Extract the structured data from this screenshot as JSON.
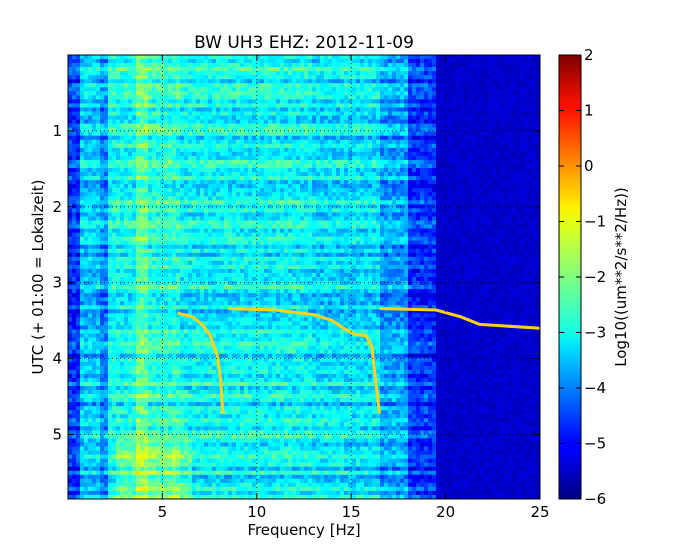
{
  "chart_data": {
    "type": "heatmap",
    "title": "BW UH3 EHZ: 2012-11-09",
    "xlabel": "Frequency [Hz]",
    "ylabel": "UTC (+ 01:00 = Lokalzeit)",
    "xlim": [
      0,
      25
    ],
    "ylim": [
      5.85,
      0
    ],
    "x_ticks": [
      5,
      10,
      15,
      20,
      25
    ],
    "y_ticks": [
      1,
      2,
      3,
      4,
      5
    ],
    "grid": true,
    "colorbar": {
      "label": "Log10((um**2/s**2/Hz))",
      "range": [
        -6,
        2
      ],
      "ticks": [
        -6,
        -5,
        -4,
        -3,
        -2,
        -1,
        0,
        1,
        2
      ],
      "colormap": "jet"
    },
    "background_levels": [
      {
        "f_max": 0.6,
        "level": -4.6
      },
      {
        "f_max": 1.6,
        "level": -3.4
      },
      {
        "f_max": 2.1,
        "level": -3.9
      },
      {
        "f_max": 3.5,
        "level": -2.9
      },
      {
        "f_max": 4.2,
        "level": -2.2
      },
      {
        "f_max": 6.0,
        "level": -2.7
      },
      {
        "f_max": 13.0,
        "level": -3.0
      },
      {
        "f_max": 16.5,
        "level": -3.2
      },
      {
        "f_max": 18.0,
        "level": -3.7
      },
      {
        "f_max": 19.5,
        "level": -4.6
      },
      {
        "f_max": 25.0,
        "level": -5.4
      }
    ],
    "series": [
      {
        "name": "",
        "points": [
          [
            5.8,
            3.4
          ],
          [
            6.6,
            3.45
          ],
          [
            7.1,
            3.55
          ],
          [
            7.5,
            3.68
          ],
          [
            7.9,
            3.95
          ],
          [
            8.1,
            4.3
          ],
          [
            8.2,
            4.72
          ]
        ]
      },
      {
        "name": "",
        "points": [
          [
            8.5,
            3.34
          ],
          [
            11.0,
            3.36
          ],
          [
            13.0,
            3.42
          ],
          [
            14.0,
            3.5
          ],
          [
            14.6,
            3.6
          ],
          [
            15.2,
            3.68
          ],
          [
            15.8,
            3.7
          ],
          [
            16.1,
            3.85
          ],
          [
            16.3,
            4.3
          ],
          [
            16.5,
            4.72
          ]
        ]
      },
      {
        "name": "",
        "points": [
          [
            16.5,
            3.34
          ],
          [
            18.0,
            3.35
          ],
          [
            19.5,
            3.36
          ],
          [
            20.8,
            3.45
          ],
          [
            21.8,
            3.55
          ],
          [
            25.0,
            3.6
          ]
        ]
      }
    ]
  }
}
